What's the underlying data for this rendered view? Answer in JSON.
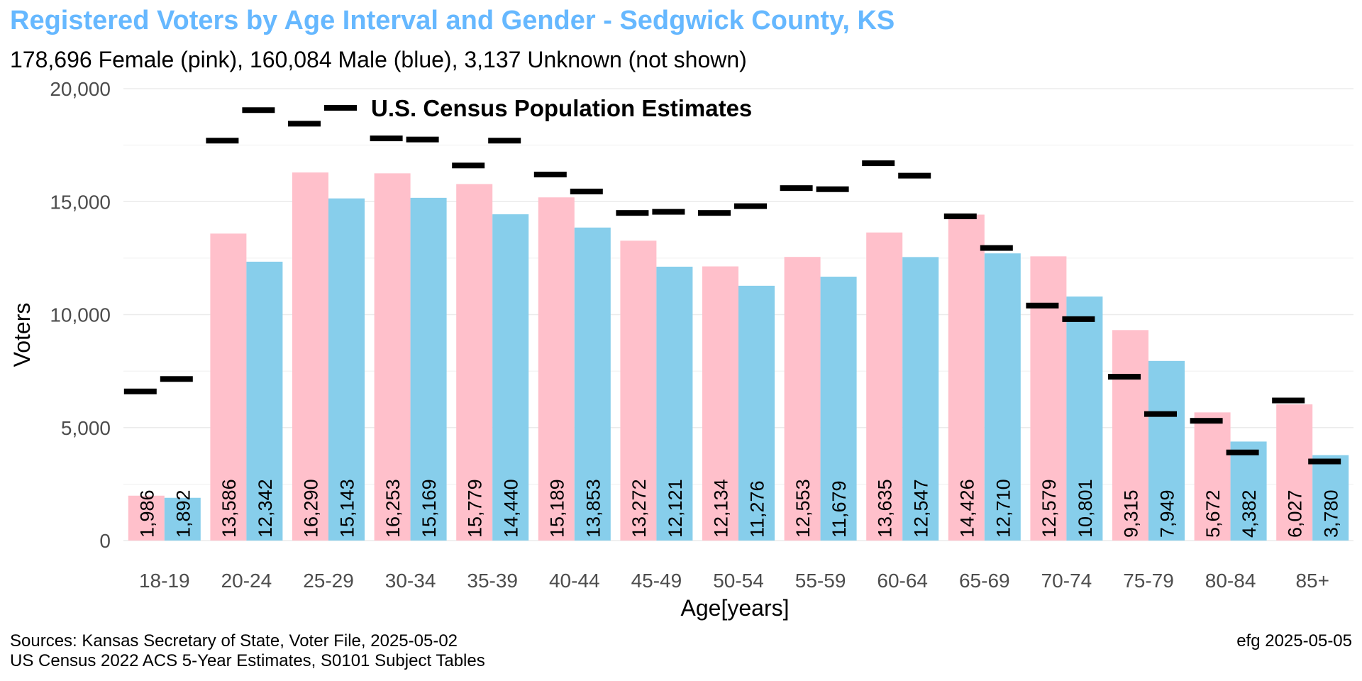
{
  "colors": {
    "title": "#66b8ff",
    "female": "#ffc0cb",
    "male": "#87ceeb",
    "census_marker": "#000000",
    "grid": "#ebebeb",
    "axis_text": "#4d4d4d"
  },
  "caption": {
    "left_line1": "Sources: Kansas Secretary of State, Voter File, 2025-05-02",
    "left_line2": "US Census 2022 ACS 5-Year Estimates, S0101 Subject Tables",
    "right": "efg 2025-05-05"
  },
  "chart_data": {
    "type": "bar",
    "title": "Registered Voters by Age Interval and Gender - Sedgwick County, KS",
    "subtitle": "178,696 Female (pink),  160,084 Male (blue),  3,137 Unknown (not shown)",
    "xlabel": "Age[years]",
    "ylabel": "Voters",
    "ylim": [
      0,
      20000
    ],
    "yticks": [
      0,
      5000,
      10000,
      15000,
      20000
    ],
    "ytick_labels": [
      "0",
      "5,000",
      "10,000",
      "15,000",
      "20,000"
    ],
    "grid": true,
    "annotation": "U.S. Census Population Estimates",
    "categories": [
      "18-19",
      "20-24",
      "25-29",
      "30-34",
      "35-39",
      "40-44",
      "45-49",
      "50-54",
      "55-59",
      "60-64",
      "65-69",
      "70-74",
      "75-79",
      "80-84",
      "85+"
    ],
    "series": [
      {
        "key": "female",
        "values": [
          1986,
          13586,
          16290,
          16253,
          15779,
          15189,
          13272,
          12134,
          12553,
          13635,
          14426,
          12579,
          9315,
          5672,
          6027
        ],
        "labels": [
          "1,986",
          "13,586",
          "16,290",
          "16,253",
          "15,779",
          "15,189",
          "13,272",
          "12,134",
          "12,553",
          "13,635",
          "14,426",
          "12,579",
          "9,315",
          "5,672",
          "6,027"
        ],
        "census_estimate": [
          6600,
          17700,
          18450,
          17800,
          16600,
          16200,
          14500,
          14500,
          15600,
          16700,
          14350,
          10400,
          7250,
          5300,
          6200
        ]
      },
      {
        "key": "male",
        "values": [
          1892,
          12342,
          15143,
          15169,
          14440,
          13853,
          12121,
          11276,
          11679,
          12547,
          12710,
          10801,
          7949,
          4382,
          3780
        ],
        "labels": [
          "1,892",
          "12,342",
          "15,143",
          "15,169",
          "14,440",
          "13,853",
          "12,121",
          "11,276",
          "11,679",
          "12,547",
          "12,710",
          "10,801",
          "7,949",
          "4,382",
          "3,780"
        ],
        "census_estimate": [
          7150,
          19050,
          19150,
          17750,
          17700,
          15450,
          14550,
          14800,
          15550,
          16150,
          12950,
          9800,
          5600,
          3900,
          3500
        ]
      }
    ]
  }
}
